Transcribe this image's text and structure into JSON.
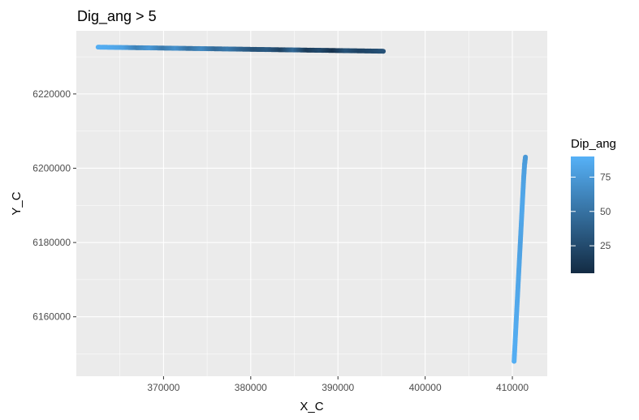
{
  "chart_data": {
    "type": "scatter",
    "title": "Dig_ang > 5",
    "xlabel": "X_C",
    "ylabel": "Y_C",
    "xlim": [
      360000,
      414000
    ],
    "ylim": [
      6144000,
      6237000
    ],
    "x_ticks": [
      370000,
      380000,
      390000,
      400000,
      410000
    ],
    "x_tick_labels": [
      "370000",
      "380000",
      "390000",
      "400000",
      "410000"
    ],
    "y_ticks": [
      6160000,
      6180000,
      6200000,
      6220000
    ],
    "y_tick_labels": [
      "6160000",
      "6180000",
      "6200000",
      "6220000"
    ],
    "grid": true,
    "legend": {
      "title": "Dip_ang",
      "position": "right",
      "type": "colorbar",
      "range": [
        5,
        90
      ],
      "ticks": [
        25,
        50,
        75
      ],
      "tick_labels": [
        "25",
        "50",
        "75"
      ],
      "low_color": "#132b43",
      "high_color": "#56b1f7"
    },
    "series": [
      {
        "x": [
          362500,
          364000,
          365500,
          367000,
          368500,
          370000,
          371500,
          373000,
          374500,
          376000,
          377500,
          379000,
          380500,
          382000,
          383500,
          385000,
          386500,
          388000,
          389500,
          391000,
          392500,
          394000,
          395200
        ],
        "y": [
          6232600,
          6232550,
          6232500,
          6232450,
          6232400,
          6232350,
          6232300,
          6232250,
          6232200,
          6232150,
          6232100,
          6232050,
          6232000,
          6231950,
          6231900,
          6231850,
          6231800,
          6231750,
          6231700,
          6231650,
          6231600,
          6231550,
          6231500
        ],
        "color_values": [
          88,
          85,
          80,
          60,
          75,
          55,
          70,
          50,
          65,
          45,
          55,
          40,
          30,
          35,
          20,
          45,
          15,
          25,
          10,
          30,
          20,
          25,
          30
        ]
      },
      {
        "x": [
          410200,
          410300,
          410400,
          410500,
          410600,
          410700,
          410800,
          410900,
          411000,
          411100,
          411200,
          411300,
          411400,
          411500
        ],
        "y": [
          6148000,
          6152500,
          6157000,
          6161500,
          6166000,
          6170500,
          6175000,
          6179500,
          6184000,
          6188500,
          6193000,
          6197500,
          6201000,
          6203000
        ],
        "color_values": [
          88,
          87,
          86,
          85,
          84,
          83,
          82,
          80,
          82,
          84,
          83,
          80,
          78,
          75
        ]
      }
    ]
  }
}
